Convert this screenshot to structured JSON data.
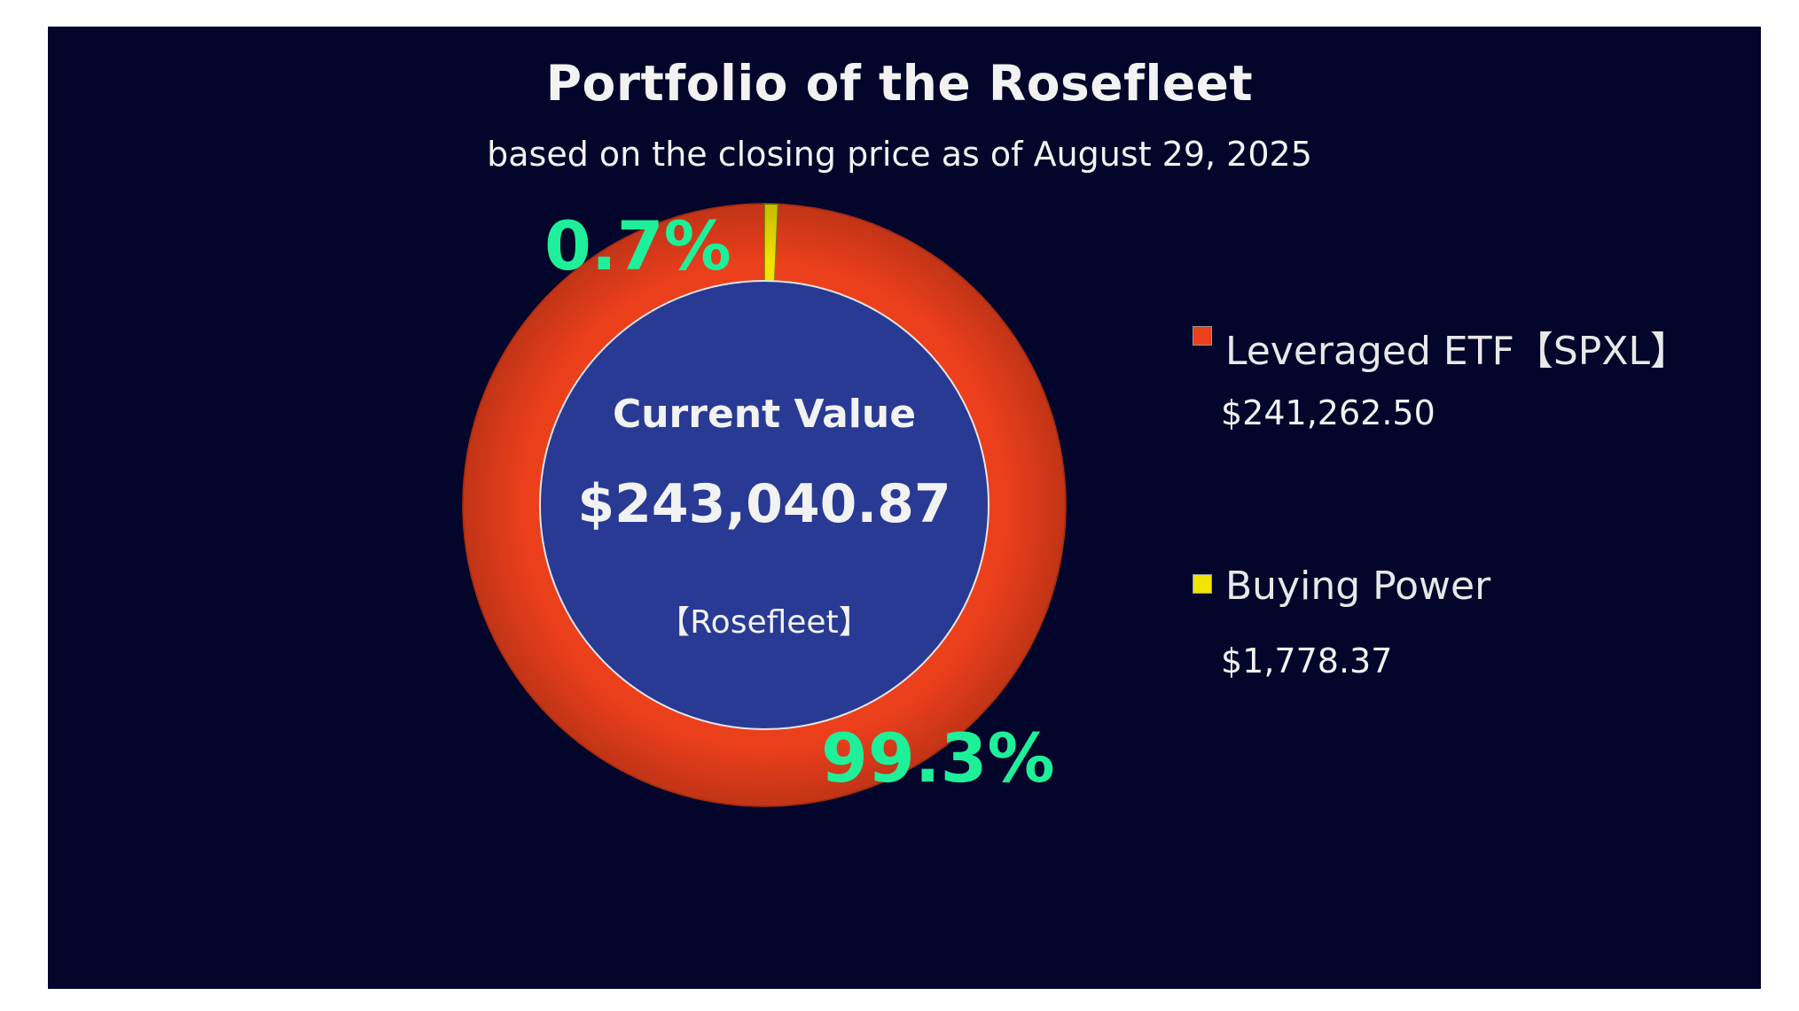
{
  "chart_data": {
    "type": "pie",
    "title": "Portfolio of the Rosefleet",
    "subtitle": "based on the closing price as of August 29, 2025",
    "center": {
      "heading": "Current Value",
      "value": "$243,040.87",
      "name": "【Rosefleet】"
    },
    "slices": [
      {
        "name": "Leveraged ETF【SPXL】",
        "value": 241262.5,
        "value_label": "$241,262.50",
        "percent": 99.3,
        "percent_label": "99.3%",
        "color": "#ec3f1c"
      },
      {
        "name": "Buying Power",
        "value": 1778.37,
        "value_label": "$1,778.37",
        "percent": 0.7,
        "percent_label": "0.7%",
        "color": "#f2e400"
      }
    ],
    "legend_position": "right",
    "colors": {
      "background": "#03052b",
      "center_fill": "#283a93",
      "percent_text": "#1ef09a"
    }
  }
}
